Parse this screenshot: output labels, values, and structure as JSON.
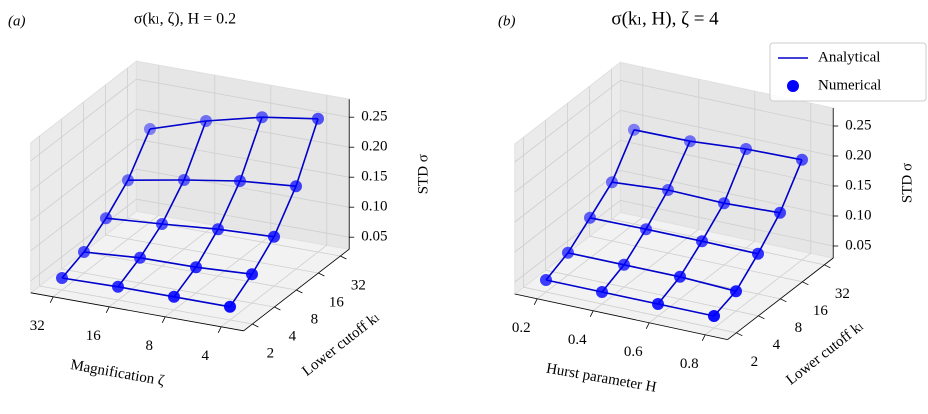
{
  "chart_data": [
    {
      "type": "wireframe3d",
      "panel_label": "(a)",
      "title": "σ(kₗ, ζ), H = 0.2",
      "xlabel": "Magnification ζ",
      "ylabel": "Lower cutoff kₗ",
      "zlabel": "STD σ",
      "x_categories": [
        "32",
        "16",
        "8",
        "4"
      ],
      "y_categories": [
        "2",
        "4",
        "8",
        "16",
        "32"
      ],
      "values": [
        [
          0.05,
          0.052,
          0.052,
          0.052
        ],
        [
          0.065,
          0.072,
          0.073,
          0.078
        ],
        [
          0.093,
          0.1,
          0.108,
          0.112
        ],
        [
          0.128,
          0.145,
          0.16,
          0.168
        ],
        [
          0.185,
          0.215,
          0.238,
          0.252
        ]
      ],
      "zlim": [
        0.03,
        0.28
      ],
      "zticks": [
        0.05,
        {
          "value": 0.1,
          "label": "0.10"
        },
        0.15,
        {
          "value": 0.2,
          "label": "0.20"
        },
        0.25
      ],
      "line_color": "#0000cc",
      "marker_color": "#0000ff",
      "grid": true
    },
    {
      "type": "wireframe3d",
      "panel_label": "(b)",
      "title": "σ(kₗ, H), ζ = 4",
      "xlabel": "Hurst parameter H",
      "ylabel": "Lower cutoff kₗ",
      "zlabel": "STD σ",
      "x_categories": [
        "0.2",
        "0.4",
        "0.6",
        "0.8"
      ],
      "y_categories": [
        "2",
        "4",
        "8",
        "16",
        "32"
      ],
      "values": [
        [
          0.05,
          0.05,
          0.05,
          0.05
        ],
        [
          0.067,
          0.067,
          0.067,
          0.063
        ],
        [
          0.097,
          0.098,
          0.098,
          0.097
        ],
        [
          0.128,
          0.135,
          0.133,
          0.137
        ],
        [
          0.187,
          0.188,
          0.195,
          0.197
        ]
      ],
      "zlim": [
        0.03,
        0.28
      ],
      "zticks": [
        0.05,
        {
          "value": 0.1,
          "label": "0.10"
        },
        0.15,
        {
          "value": 0.2,
          "label": "0.20"
        },
        0.25
      ],
      "line_color": "#0000cc",
      "marker_color": "#0000ff",
      "grid": true,
      "legend": [
        {
          "name": "Analytical",
          "style": "line"
        },
        {
          "name": "Numerical",
          "style": "marker"
        }
      ],
      "legend_loc": "upper right"
    }
  ]
}
